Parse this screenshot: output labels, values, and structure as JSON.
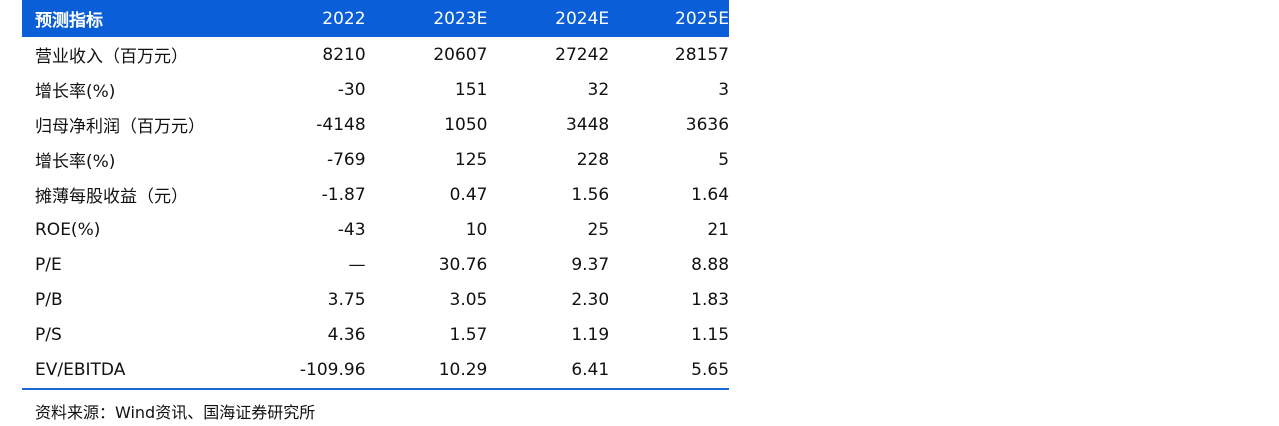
{
  "table": {
    "header": [
      "预测指标",
      "2022",
      "2023E",
      "2024E",
      "2025E"
    ],
    "rows": [
      [
        "营业收入（百万元）",
        "8210",
        "20607",
        "27242",
        "28157"
      ],
      [
        "增长率(%)",
        "-30",
        "151",
        "32",
        "3"
      ],
      [
        "归母净利润（百万元）",
        "-4148",
        "1050",
        "3448",
        "3636"
      ],
      [
        "增长率(%)",
        "-769",
        "125",
        "228",
        "5"
      ],
      [
        "摊薄每股收益（元）",
        "-1.87",
        "0.47",
        "1.56",
        "1.64"
      ],
      [
        "ROE(%)",
        "-43",
        "10",
        "25",
        "21"
      ],
      [
        "P/E",
        "—",
        "30.76",
        "9.37",
        "8.88"
      ],
      [
        "P/B",
        "3.75",
        "3.05",
        "2.30",
        "1.83"
      ],
      [
        "P/S",
        "4.36",
        "1.57",
        "1.19",
        "1.15"
      ],
      [
        "EV/EBITDA",
        "-109.96",
        "10.29",
        "6.41",
        "5.65"
      ]
    ]
  },
  "source": "资料来源：Wind资讯、国海证券研究所",
  "colors": {
    "header_bg": "#0a5fd8",
    "rule": "#1a6ad8"
  }
}
